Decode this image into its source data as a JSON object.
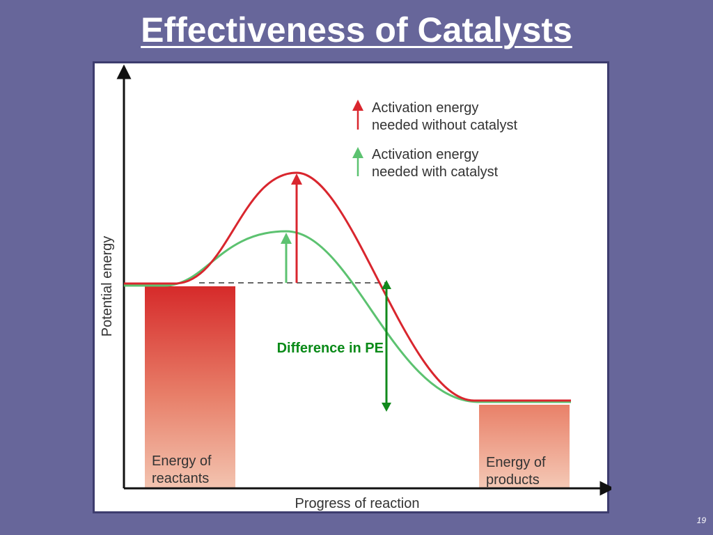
{
  "slide": {
    "title": "Effectiveness of Catalysts",
    "page_number": "19"
  },
  "diagram": {
    "y_axis_label": "Potential energy",
    "x_axis_label": "Progress of reaction",
    "legend": {
      "without_catalyst": [
        "Activation energy",
        "needed without catalyst"
      ],
      "with_catalyst": [
        "Activation energy",
        "needed with catalyst"
      ]
    },
    "difference_label": "Difference in PE",
    "reactants_label": [
      "Energy of",
      "reactants"
    ],
    "products_label": [
      "Energy of",
      "products"
    ],
    "colors": {
      "without_catalyst": "#d9262e",
      "with_catalyst": "#5cc270",
      "difference_arrow": "#118a1c",
      "difference_text": "#0a8a18"
    }
  }
}
